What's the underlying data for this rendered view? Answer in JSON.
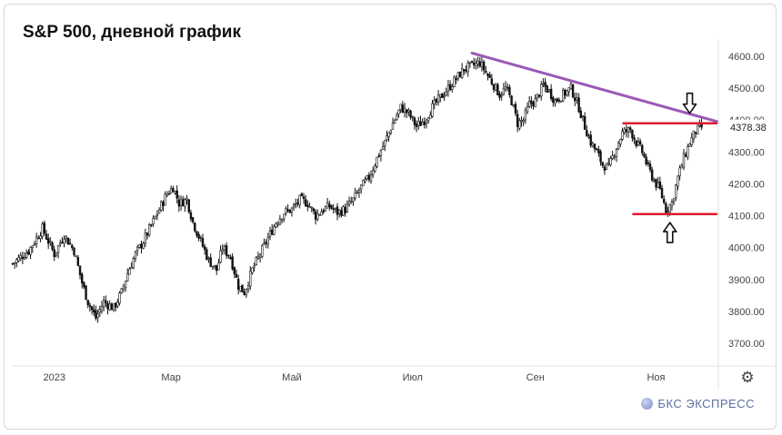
{
  "title": "S&P 500, дневной график",
  "brand": {
    "label": "БКС ЭКСПРЕСС",
    "icon": "bcs-logo-icon"
  },
  "settings_icon": "gear-icon",
  "chart_data": {
    "type": "candlestick",
    "title": "S&P 500, дневной график",
    "ylim": [
      3650,
      4650
    ],
    "y_ticks": [
      "4600.00",
      "4500.00",
      "4400.00",
      "4300.00",
      "4200.00",
      "4100.00",
      "4000.00",
      "3900.00",
      "3800.00",
      "3700.00"
    ],
    "y_tick_values": [
      4600,
      4500,
      4400,
      4300,
      4200,
      4100,
      4000,
      3900,
      3800,
      3700
    ],
    "x_ticks": [
      "2023",
      "Мар",
      "Май",
      "Июл",
      "Сен",
      "Ноя"
    ],
    "x_tick_days": [
      21,
      80,
      141,
      202,
      264,
      325
    ],
    "day_range": [
      0,
      356
    ],
    "last_price": "4378.38",
    "last_price_value": 4378.38,
    "grid": false,
    "colors": {
      "candle": "#111111",
      "trendline": "#9b59b6",
      "level": "#e0192f",
      "price_box": "#ffffff"
    },
    "series": [
      {
        "points": [
          [
            0,
            3950
          ],
          [
            8,
            3990
          ],
          [
            15,
            4060
          ],
          [
            21,
            3980
          ],
          [
            26,
            4040
          ],
          [
            31,
            3990
          ],
          [
            35,
            3890
          ],
          [
            38,
            3830
          ],
          [
            42,
            3780
          ],
          [
            46,
            3830
          ],
          [
            51,
            3810
          ],
          [
            55,
            3860
          ],
          [
            58,
            3920
          ],
          [
            62,
            3980
          ],
          [
            66,
            4020
          ],
          [
            70,
            4070
          ],
          [
            74,
            4120
          ],
          [
            78,
            4170
          ],
          [
            81,
            4190
          ],
          [
            84,
            4140
          ],
          [
            88,
            4150
          ],
          [
            91,
            4080
          ],
          [
            95,
            4020
          ],
          [
            99,
            3960
          ],
          [
            103,
            3930
          ],
          [
            106,
            4000
          ],
          [
            110,
            3970
          ],
          [
            114,
            3880
          ],
          [
            117,
            3860
          ],
          [
            121,
            3930
          ],
          [
            125,
            3980
          ],
          [
            129,
            4030
          ],
          [
            133,
            4080
          ],
          [
            137,
            4110
          ],
          [
            141,
            4120
          ],
          [
            145,
            4150
          ],
          [
            149,
            4140
          ],
          [
            153,
            4100
          ],
          [
            157,
            4120
          ],
          [
            160,
            4130
          ],
          [
            164,
            4110
          ],
          [
            168,
            4120
          ],
          [
            172,
            4150
          ],
          [
            176,
            4190
          ],
          [
            180,
            4220
          ],
          [
            184,
            4280
          ],
          [
            188,
            4330
          ],
          [
            192,
            4390
          ],
          [
            196,
            4440
          ],
          [
            200,
            4420
          ],
          [
            204,
            4380
          ],
          [
            208,
            4400
          ],
          [
            212,
            4440
          ],
          [
            216,
            4470
          ],
          [
            220,
            4500
          ],
          [
            224,
            4530
          ],
          [
            228,
            4560
          ],
          [
            232,
            4570
          ],
          [
            236,
            4580
          ],
          [
            240,
            4540
          ],
          [
            243,
            4510
          ],
          [
            246,
            4480
          ],
          [
            249,
            4500
          ],
          [
            252,
            4460
          ],
          [
            255,
            4390
          ],
          [
            258,
            4400
          ],
          [
            261,
            4450
          ],
          [
            264,
            4460
          ],
          [
            268,
            4510
          ],
          [
            271,
            4490
          ],
          [
            274,
            4460
          ],
          [
            278,
            4480
          ],
          [
            282,
            4500
          ],
          [
            286,
            4440
          ],
          [
            289,
            4380
          ],
          [
            292,
            4330
          ],
          [
            295,
            4300
          ],
          [
            298,
            4260
          ],
          [
            301,
            4250
          ],
          [
            304,
            4300
          ],
          [
            308,
            4360
          ],
          [
            312,
            4370
          ],
          [
            315,
            4330
          ],
          [
            318,
            4300
          ],
          [
            321,
            4250
          ],
          [
            324,
            4210
          ],
          [
            327,
            4180
          ],
          [
            330,
            4120
          ],
          [
            333,
            4140
          ],
          [
            336,
            4220
          ],
          [
            339,
            4280
          ],
          [
            342,
            4330
          ],
          [
            345,
            4365
          ],
          [
            348,
            4378
          ]
        ]
      }
    ],
    "annotations": [
      {
        "type": "trendline",
        "from": [
          232,
          4610
        ],
        "to": [
          356,
          4395
        ]
      },
      {
        "type": "horizontal_level",
        "y": 4390,
        "from_day": 308,
        "to_day": 356
      },
      {
        "type": "horizontal_level",
        "y": 4105,
        "from_day": 313,
        "to_day": 356
      },
      {
        "type": "arrow_down",
        "x": 342,
        "y": 4450
      },
      {
        "type": "arrow_up",
        "x": 332,
        "y": 4050
      }
    ]
  }
}
